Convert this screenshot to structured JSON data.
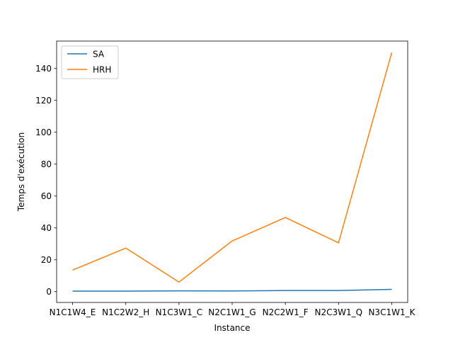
{
  "chart_data": {
    "type": "line",
    "title": "",
    "xlabel": "Instance",
    "ylabel": "Temps d'exécution",
    "categories": [
      "N1C1W4_E",
      "N1C2W2_H",
      "N1C3W1_C",
      "N2C1W1_G",
      "N2C2W1_F",
      "N2C3W1_Q",
      "N3C1W1_K"
    ],
    "ylim": [
      -6.8,
      157.2
    ],
    "yticks": [
      0,
      20,
      40,
      60,
      80,
      100,
      120,
      140
    ],
    "grid": false,
    "legend_position": "upper left",
    "series": [
      {
        "name": "SA",
        "color": "#1f77b4",
        "values": [
          0.3,
          0.3,
          0.5,
          0.4,
          0.7,
          0.7,
          1.4
        ]
      },
      {
        "name": "HRH",
        "color": "#ff7f0e",
        "values": [
          13.5,
          27.3,
          6.0,
          31.8,
          46.5,
          30.6,
          150.0
        ]
      }
    ]
  }
}
